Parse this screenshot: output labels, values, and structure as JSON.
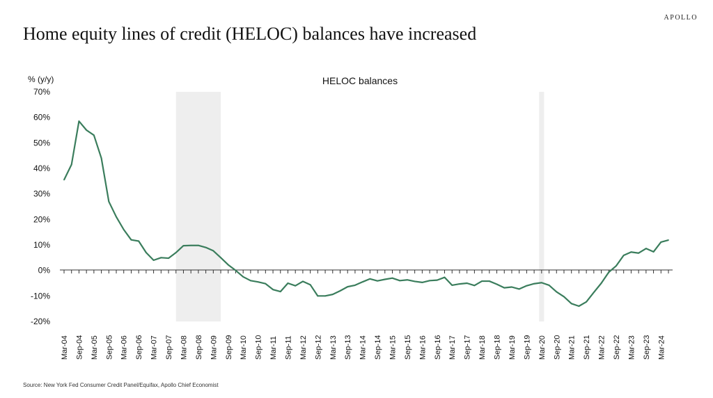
{
  "brand": "APOLLO",
  "title": "Home equity lines of credit (HELOC) balances have increased",
  "source": "Source: New York Fed Consumer Credit Panel/Equifax, Apollo Chief Economist",
  "chart_data": {
    "type": "line",
    "title": "HELOC balances",
    "ylabel": "% (y/y)",
    "xlabel": "",
    "ylim": [
      -20,
      70
    ],
    "yticks": [
      70,
      60,
      50,
      40,
      30,
      20,
      10,
      0,
      -10,
      -20
    ],
    "ytick_labels": [
      "70%",
      "60%",
      "50%",
      "40%",
      "30%",
      "20%",
      "10%",
      "0%",
      "-10%",
      "-20%"
    ],
    "xtick_labels": [
      "Mar-04",
      "Sep-04",
      "Mar-05",
      "Sep-05",
      "Mar-06",
      "Sep-06",
      "Mar-07",
      "Sep-07",
      "Mar-08",
      "Sep-08",
      "Mar-09",
      "Sep-09",
      "Mar-10",
      "Sep-10",
      "Mar-11",
      "Sep-11",
      "Mar-12",
      "Sep-12",
      "Mar-13",
      "Sep-13",
      "Mar-14",
      "Sep-14",
      "Mar-15",
      "Sep-15",
      "Mar-16",
      "Sep-16",
      "Mar-17",
      "Sep-17",
      "Mar-18",
      "Sep-18",
      "Mar-19",
      "Sep-19",
      "Mar-20",
      "Sep-20",
      "Mar-21",
      "Sep-21",
      "Mar-22",
      "Sep-22",
      "Mar-23",
      "Sep-23",
      "Mar-24"
    ],
    "grid": false,
    "line_color": "#3a7d5c",
    "shade_color": "#eeeeee",
    "recessions": [
      [
        "Dec-07",
        "Jun-09"
      ],
      [
        "Feb-20",
        "Apr-20"
      ]
    ],
    "series": [
      {
        "x": [
          "Mar-04",
          "Jun-04",
          "Sep-04",
          "Dec-04",
          "Mar-05",
          "Jun-05",
          "Sep-05",
          "Dec-05",
          "Mar-06",
          "Jun-06",
          "Sep-06",
          "Dec-06",
          "Mar-07",
          "Jun-07",
          "Sep-07",
          "Dec-07",
          "Mar-08",
          "Jun-08",
          "Sep-08",
          "Dec-08",
          "Mar-09",
          "Jun-09",
          "Sep-09",
          "Dec-09",
          "Mar-10",
          "Jun-10",
          "Sep-10",
          "Dec-10",
          "Mar-11",
          "Jun-11",
          "Sep-11",
          "Dec-11",
          "Mar-12",
          "Jun-12",
          "Sep-12",
          "Dec-12",
          "Mar-13",
          "Jun-13",
          "Sep-13",
          "Dec-13",
          "Mar-14",
          "Jun-14",
          "Sep-14",
          "Dec-14",
          "Mar-15",
          "Jun-15",
          "Sep-15",
          "Dec-15",
          "Mar-16",
          "Jun-16",
          "Sep-16",
          "Dec-16",
          "Mar-17",
          "Jun-17",
          "Sep-17",
          "Dec-17",
          "Mar-18",
          "Jun-18",
          "Sep-18",
          "Dec-18",
          "Mar-19",
          "Jun-19",
          "Sep-19",
          "Dec-19",
          "Mar-20",
          "Jun-20",
          "Sep-20",
          "Dec-20",
          "Mar-21",
          "Jun-21",
          "Sep-21",
          "Dec-21",
          "Mar-22",
          "Jun-22",
          "Sep-22",
          "Dec-22",
          "Mar-23",
          "Jun-23",
          "Sep-23",
          "Dec-23",
          "Mar-24",
          "Jun-24"
        ],
        "values": [
          35.5,
          41.5,
          58.5,
          55,
          53,
          44,
          27,
          21,
          16,
          12,
          11.5,
          7,
          4,
          5,
          4.8,
          7,
          9.7,
          9.8,
          9.8,
          9,
          7.7,
          5,
          2.2,
          0,
          -2.5,
          -4,
          -4.5,
          -5.2,
          -7.5,
          -8.3,
          -5,
          -6,
          -4.3,
          -5.6,
          -10,
          -10,
          -9.4,
          -8,
          -6.4,
          -5.8,
          -4.5,
          -3.3,
          -4.1,
          -3.5,
          -3,
          -4,
          -3.7,
          -4.3,
          -4.7,
          -4,
          -3.8,
          -2.7,
          -5.8,
          -5.3,
          -5,
          -5.9,
          -4.2,
          -4.2,
          -5.4,
          -6.8,
          -6.5,
          -7.3,
          -6,
          -5.2,
          -4.8,
          -5.8,
          -8.4,
          -10.3,
          -13,
          -14,
          -12.3,
          -8.6,
          -5,
          -0.7,
          1.8,
          5.9,
          7.2,
          6.8,
          8.6,
          7.3,
          11.1,
          11.9
        ]
      }
    ]
  }
}
